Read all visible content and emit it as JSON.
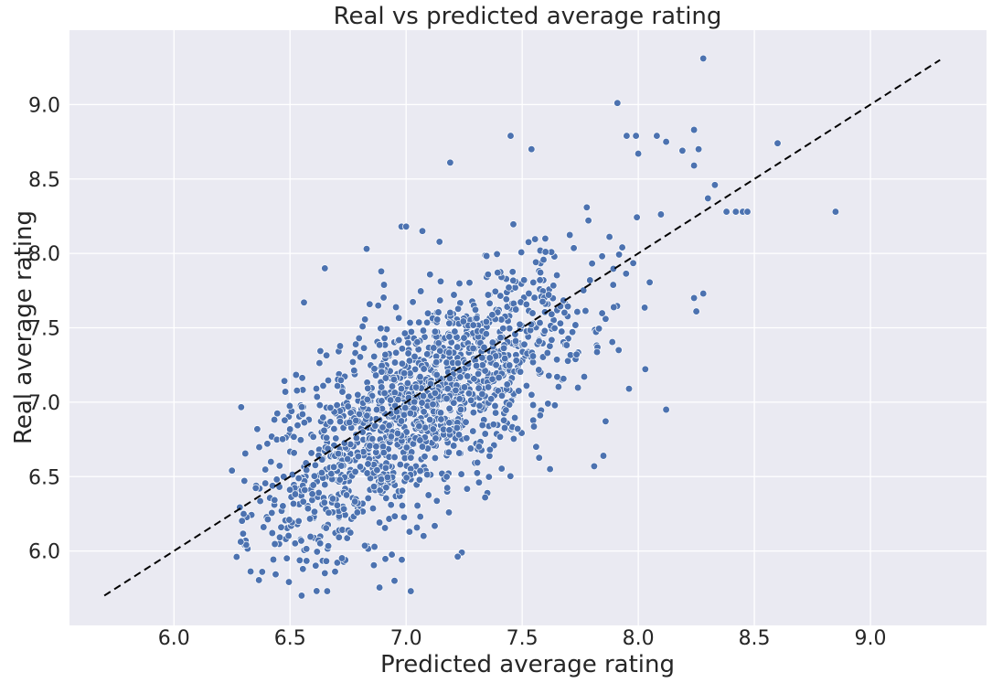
{
  "chart_data": {
    "type": "scatter",
    "title": "Real vs predicted average rating",
    "xlabel": "Predicted average rating",
    "ylabel": "Real average rating",
    "xlim": [
      5.55,
      9.5
    ],
    "ylim": [
      5.5,
      9.5
    ],
    "xticks": [
      "6.0",
      "6.5",
      "7.0",
      "7.5",
      "8.0",
      "8.5",
      "9.0"
    ],
    "yticks": [
      "6.0",
      "6.5",
      "7.0",
      "7.5",
      "8.0",
      "8.5",
      "9.0"
    ],
    "grid": true,
    "background_color": "#eaeaf2",
    "grid_color": "#ffffff",
    "point_color": "#4c72b0",
    "reference_line": {
      "x": [
        5.7,
        9.3
      ],
      "y": [
        5.7,
        9.3
      ],
      "style": "dashed",
      "color": "#000000"
    },
    "series": [
      {
        "points": [
          [
            6.25,
            6.54
          ],
          [
            6.27,
            5.96
          ],
          [
            6.38,
            5.86
          ],
          [
            6.48,
            7.07
          ],
          [
            6.56,
            7.67
          ],
          [
            6.65,
            7.9
          ],
          [
            6.83,
            8.03
          ],
          [
            6.98,
            8.18
          ],
          [
            7.0,
            8.18
          ],
          [
            7.07,
            8.15
          ],
          [
            7.19,
            8.61
          ],
          [
            7.45,
            8.79
          ],
          [
            7.54,
            8.7
          ],
          [
            7.91,
            9.01
          ],
          [
            7.95,
            8.79
          ],
          [
            7.99,
            8.79
          ],
          [
            8.0,
            8.67
          ],
          [
            8.08,
            8.79
          ],
          [
            8.12,
            8.75
          ],
          [
            8.19,
            8.69
          ],
          [
            8.24,
            8.83
          ],
          [
            8.24,
            8.59
          ],
          [
            8.26,
            8.7
          ],
          [
            8.28,
            9.31
          ],
          [
            8.3,
            8.37
          ],
          [
            8.33,
            8.46
          ],
          [
            8.38,
            8.28
          ],
          [
            8.42,
            8.28
          ],
          [
            8.45,
            8.28
          ],
          [
            8.47,
            8.28
          ],
          [
            8.6,
            8.74
          ],
          [
            8.85,
            8.28
          ],
          [
            8.28,
            7.73
          ],
          [
            8.24,
            7.7
          ],
          [
            8.25,
            7.61
          ],
          [
            8.12,
            6.95
          ],
          [
            7.96,
            7.09
          ],
          [
            7.85,
            6.64
          ],
          [
            7.81,
            6.57
          ],
          [
            7.62,
            6.55
          ],
          [
            7.56,
            6.7
          ],
          [
            7.35,
            6.39
          ],
          [
            7.24,
            5.99
          ],
          [
            7.02,
            5.73
          ],
          [
            6.95,
            5.8
          ],
          [
            6.55,
            5.7
          ],
          [
            6.66,
            5.73
          ]
        ]
      }
    ]
  }
}
